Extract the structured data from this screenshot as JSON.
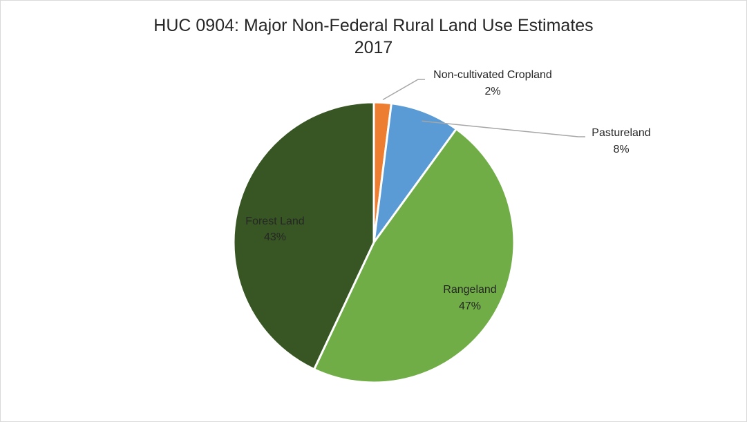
{
  "chart_data": {
    "type": "pie",
    "title": "HUC 0904: Major Non-Federal Rural Land Use Estimates",
    "subtitle": "2017",
    "slices": [
      {
        "label": "Non-cultivated Cropland",
        "value": 2,
        "display": "2%",
        "color": "#ED7D31"
      },
      {
        "label": "Pastureland",
        "value": 8,
        "display": "8%",
        "color": "#5B9BD5"
      },
      {
        "label": "Rangeland",
        "value": 47,
        "display": "47%",
        "color": "#70AD47"
      },
      {
        "label": "Forest Land",
        "value": 43,
        "display": "43%",
        "color": "#375623"
      }
    ],
    "legend": "none",
    "data_labels": "category and percentage"
  }
}
